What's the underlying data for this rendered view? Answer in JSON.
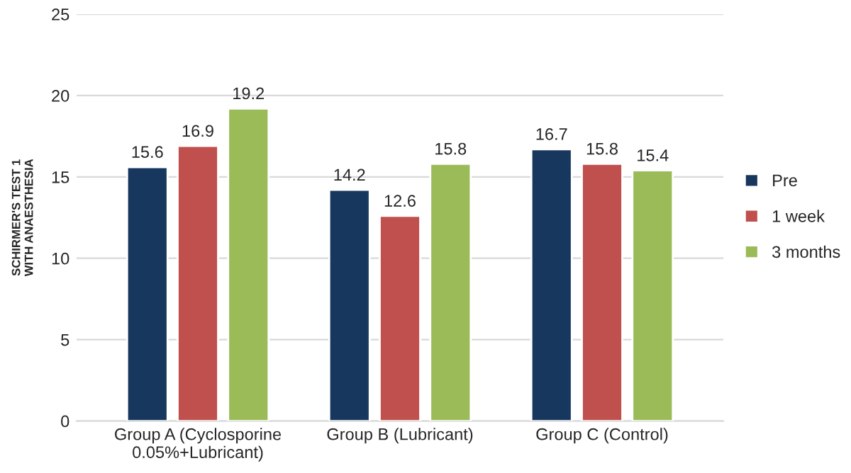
{
  "chart_data": {
    "type": "bar",
    "categories": [
      "Group A (Cyclosporine\n0.05%+Lubricant)",
      "Group B (Lubricant)",
      "Group C (Control)"
    ],
    "ylabel": "SCHIRMER'S TEST 1\nWITH ANAESTHESIA",
    "series": [
      {
        "name": "Pre",
        "color": "#17375e",
        "values": [
          15.6,
          14.2,
          16.7
        ]
      },
      {
        "name": "1 week",
        "color": "#c0504d",
        "values": [
          16.9,
          12.6,
          15.8
        ]
      },
      {
        "name": "3 months",
        "color": "#9bbb59",
        "values": [
          19.2,
          15.8,
          15.4
        ]
      }
    ],
    "ylim": [
      0,
      25
    ],
    "yticks": [
      0,
      5,
      10,
      15,
      20,
      25
    ],
    "grid": "y",
    "legend": "right",
    "data_labels": true
  }
}
